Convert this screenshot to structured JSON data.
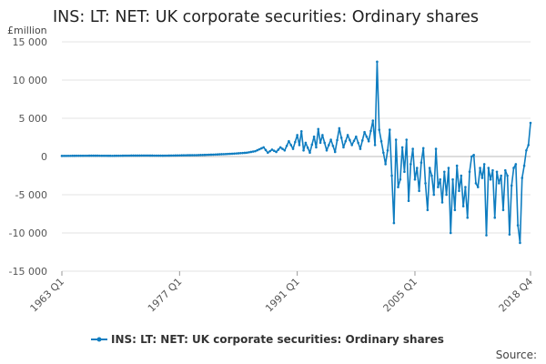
{
  "chart_data": {
    "type": "line",
    "title": "INS: LT: NET: UK corporate securities: Ordinary shares",
    "y_unit": "£million",
    "xlabel": "",
    "ylabel": "",
    "ylim": [
      -15000,
      15000
    ],
    "y_ticks": [
      15000,
      10000,
      5000,
      0,
      -5000,
      -10000,
      -15000
    ],
    "y_tick_labels": [
      "15 000",
      "10 000",
      "5 000",
      "0",
      "-5 000",
      "-10 000",
      "-15 000"
    ],
    "x_tick_labels": [
      "1963 Q1",
      "1977 Q1",
      "1991 Q1",
      "2005 Q1",
      "2018 Q4"
    ],
    "x_range": [
      "1963 Q1",
      "2018 Q4"
    ],
    "grid": "horizontal",
    "legend_position": "bottom",
    "source_label": "Source:",
    "color": "#0f7dc0",
    "series": [
      {
        "name": "INS: LT: NET: UK corporate securities: Ordinary shares",
        "points": [
          [
            "1963 Q1",
            80
          ],
          [
            "1965 Q1",
            100
          ],
          [
            "1967 Q1",
            110
          ],
          [
            "1969 Q1",
            90
          ],
          [
            "1971 Q1",
            120
          ],
          [
            "1973 Q1",
            130
          ],
          [
            "1975 Q1",
            110
          ],
          [
            "1977 Q1",
            150
          ],
          [
            "1979 Q1",
            180
          ],
          [
            "1981 Q1",
            250
          ],
          [
            "1982 Q1",
            300
          ],
          [
            "1983 Q1",
            350
          ],
          [
            "1984 Q1",
            420
          ],
          [
            "1985 Q1",
            500
          ],
          [
            "1986 Q1",
            700
          ],
          [
            "1987 Q1",
            1200
          ],
          [
            "1987 Q3",
            500
          ],
          [
            "1988 Q1",
            900
          ],
          [
            "1988 Q3",
            600
          ],
          [
            "1989 Q1",
            1200
          ],
          [
            "1989 Q3",
            800
          ],
          [
            "1990 Q1",
            2000
          ],
          [
            "1990 Q3",
            1000
          ],
          [
            "1991 Q1",
            2800
          ],
          [
            "1991 Q2",
            1500
          ],
          [
            "1991 Q3",
            3300
          ],
          [
            "1991 Q4",
            800
          ],
          [
            "1992 Q1",
            1800
          ],
          [
            "1992 Q3",
            500
          ],
          [
            "1993 Q1",
            2600
          ],
          [
            "1993 Q2",
            1200
          ],
          [
            "1993 Q3",
            3600
          ],
          [
            "1993 Q4",
            1800
          ],
          [
            "1994 Q1",
            2800
          ],
          [
            "1994 Q3",
            800
          ],
          [
            "1995 Q1",
            2200
          ],
          [
            "1995 Q3",
            600
          ],
          [
            "1996 Q1",
            3700
          ],
          [
            "1996 Q3",
            1200
          ],
          [
            "1997 Q1",
            2800
          ],
          [
            "1997 Q3",
            1500
          ],
          [
            "1998 Q1",
            2600
          ],
          [
            "1998 Q3",
            1000
          ],
          [
            "1999 Q1",
            3200
          ],
          [
            "1999 Q3",
            2000
          ],
          [
            "2000 Q1",
            4700
          ],
          [
            "2000 Q2",
            1500
          ],
          [
            "2000 Q3",
            12400
          ],
          [
            "2000 Q4",
            3500
          ],
          [
            "2001 Q1",
            2000
          ],
          [
            "2001 Q2",
            500
          ],
          [
            "2001 Q3",
            -1000
          ],
          [
            "2001 Q4",
            800
          ],
          [
            "2002 Q1",
            3500
          ],
          [
            "2002 Q2",
            -2500
          ],
          [
            "2002 Q3",
            -8700
          ],
          [
            "2002 Q4",
            2200
          ],
          [
            "2003 Q1",
            -4000
          ],
          [
            "2003 Q2",
            -3000
          ],
          [
            "2003 Q3",
            1200
          ],
          [
            "2003 Q4",
            -2000
          ],
          [
            "2004 Q1",
            2200
          ],
          [
            "2004 Q2",
            -5800
          ],
          [
            "2004 Q3",
            -1000
          ],
          [
            "2004 Q4",
            1000
          ],
          [
            "2005 Q1",
            -3000
          ],
          [
            "2005 Q2",
            -1500
          ],
          [
            "2005 Q3",
            -4500
          ],
          [
            "2005 Q4",
            -800
          ],
          [
            "2006 Q1",
            1100
          ],
          [
            "2006 Q2",
            -3500
          ],
          [
            "2006 Q3",
            -7000
          ],
          [
            "2006 Q4",
            -1500
          ],
          [
            "2007 Q1",
            -2500
          ],
          [
            "2007 Q2",
            -5000
          ],
          [
            "2007 Q3",
            1000
          ],
          [
            "2007 Q4",
            -4000
          ],
          [
            "2008 Q1",
            -3000
          ],
          [
            "2008 Q2",
            -6000
          ],
          [
            "2008 Q3",
            -2000
          ],
          [
            "2008 Q4",
            -5000
          ],
          [
            "2009 Q1",
            -1500
          ],
          [
            "2009 Q2",
            -10000
          ],
          [
            "2009 Q3",
            -3000
          ],
          [
            "2009 Q4",
            -7000
          ],
          [
            "2010 Q1",
            -1200
          ],
          [
            "2010 Q2",
            -4500
          ],
          [
            "2010 Q3",
            -2500
          ],
          [
            "2010 Q4",
            -6500
          ],
          [
            "2011 Q1",
            -4000
          ],
          [
            "2011 Q2",
            -8000
          ],
          [
            "2011 Q3",
            -2000
          ],
          [
            "2011 Q4",
            0
          ],
          [
            "2012 Q1",
            200
          ],
          [
            "2012 Q2",
            -3500
          ],
          [
            "2012 Q3",
            -4000
          ],
          [
            "2012 Q4",
            -1500
          ],
          [
            "2013 Q1",
            -2800
          ],
          [
            "2013 Q2",
            -1000
          ],
          [
            "2013 Q3",
            -10300
          ],
          [
            "2013 Q4",
            -1500
          ],
          [
            "2014 Q1",
            -3000
          ],
          [
            "2014 Q2",
            -1800
          ],
          [
            "2014 Q3",
            -8000
          ],
          [
            "2014 Q4",
            -2000
          ],
          [
            "2015 Q1",
            -3500
          ],
          [
            "2015 Q2",
            -2500
          ],
          [
            "2015 Q3",
            -7000
          ],
          [
            "2015 Q4",
            -1800
          ],
          [
            "2016 Q1",
            -2500
          ],
          [
            "2016 Q2",
            -10200
          ],
          [
            "2016 Q3",
            -3800
          ],
          [
            "2016 Q4",
            -1500
          ],
          [
            "2017 Q1",
            -1000
          ],
          [
            "2017 Q2",
            -9000
          ],
          [
            "2017 Q3",
            -11300
          ],
          [
            "2017 Q4",
            -2800
          ],
          [
            "2018 Q1",
            -1200
          ],
          [
            "2018 Q2",
            800
          ],
          [
            "2018 Q3",
            1500
          ],
          [
            "2018 Q4",
            4400
          ]
        ]
      }
    ]
  }
}
